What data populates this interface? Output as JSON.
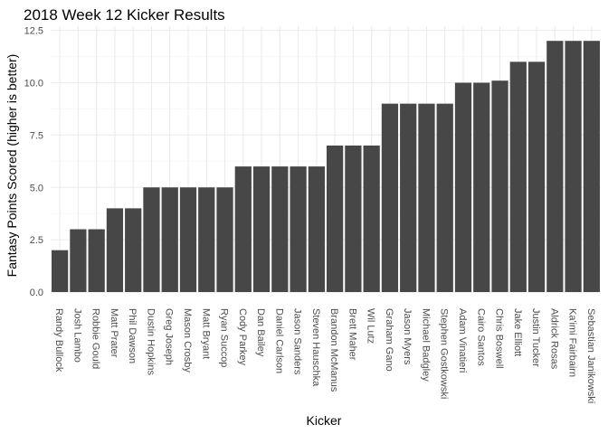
{
  "chart_data": {
    "type": "bar",
    "title": "2018 Week 12 Kicker Results",
    "xlabel": "Kicker",
    "ylabel": "Fantasy Points Scored (higher is better)",
    "ylim": [
      0,
      12.7
    ],
    "yticks": [
      "0.0",
      "2.5",
      "5.0",
      "7.5",
      "10.0",
      "12.5"
    ],
    "categories": [
      "Randy Bullock",
      "Josh Lambo",
      "Robbie Gould",
      "Matt Prater",
      "Phil Dawson",
      "Dustin Hopkins",
      "Greg Joseph",
      "Mason Crosby",
      "Matt Bryant",
      "Ryan Succop",
      "Cody Parkey",
      "Dan Bailey",
      "Daniel Carlson",
      "Jason Sanders",
      "Steven Hauschka",
      "Brandon McManus",
      "Brett Maher",
      "Wil Lutz",
      "Graham Gano",
      "Jason Myers",
      "Michael Badgley",
      "Stephen Gostkowski",
      "Adam Vinatieri",
      "Cairo Santos",
      "Chris Boswell",
      "Jake Elliott",
      "Justin Tucker",
      "Aldrick Rosas",
      "Ka'imi Fairbairn",
      "Sebastian Janikowski"
    ],
    "values": [
      2,
      3,
      3,
      4,
      4,
      5,
      5,
      5,
      5,
      5,
      6,
      6,
      6,
      6,
      6,
      7,
      7,
      7,
      9,
      9,
      9,
      9,
      10,
      10,
      10.1,
      11,
      11,
      12,
      12,
      12
    ],
    "grid": true,
    "colors": {
      "bar": "#474747",
      "grid": "#ebebeb"
    }
  }
}
